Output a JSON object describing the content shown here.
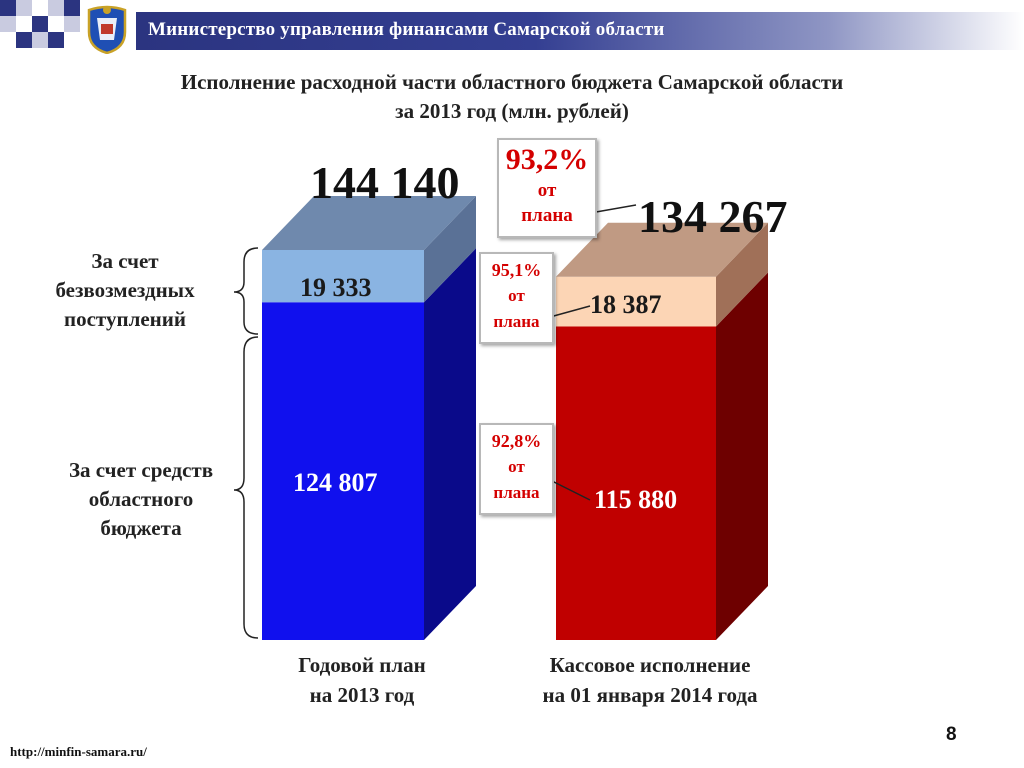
{
  "header": {
    "ministry": "Министерство управления финансами Самарской области",
    "logo": "samara-region-coat-of-arms"
  },
  "title": {
    "line1": "Исполнение расходной части областного бюджета Самарской области",
    "line2": "за 2013 год (млн. рублей)"
  },
  "side_labels": {
    "top": [
      "За счет",
      "безвозмездных",
      "поступлений"
    ],
    "bottom": [
      "За счет средств",
      "областного",
      "бюджета"
    ]
  },
  "callouts": {
    "total": {
      "pct": "93,2%",
      "line1": "от",
      "line2": "плана"
    },
    "top": {
      "pct": "95,1%",
      "line1": "от",
      "line2": "плана"
    },
    "bottom": {
      "pct": "92,8%",
      "line1": "от",
      "line2": "плана"
    }
  },
  "chart_data": {
    "type": "bar",
    "stacked": true,
    "title": "Исполнение расходной части областного бюджета Самарской области за 2013 год (млн. рублей)",
    "categories": [
      "Годовой план на 2013 год",
      "Кассовое исполнение на 01 января 2014 года"
    ],
    "category_lines": [
      [
        "Годовой план",
        "на 2013 год"
      ],
      [
        "Кассовое исполнение",
        "на 01 января 2014 года"
      ]
    ],
    "series": [
      {
        "name": "За счет средств областного бюджета",
        "values": [
          124807,
          115880
        ],
        "labels": [
          "124 807",
          "115 880"
        ]
      },
      {
        "name": "За счет безвозмездных поступлений",
        "values": [
          19333,
          18387
        ],
        "labels": [
          "19 333",
          "18 387"
        ]
      }
    ],
    "totals": [
      144140,
      134267
    ],
    "total_labels": [
      "144 140",
      "134 267"
    ],
    "colors": {
      "plan_bottom": "#1010ee",
      "plan_top": "#8ab4e2",
      "exec_bottom": "#c00000",
      "exec_top": "#fcd5b5"
    }
  },
  "footer": {
    "url": "http://minfin-samara.ru/",
    "page": "8"
  }
}
